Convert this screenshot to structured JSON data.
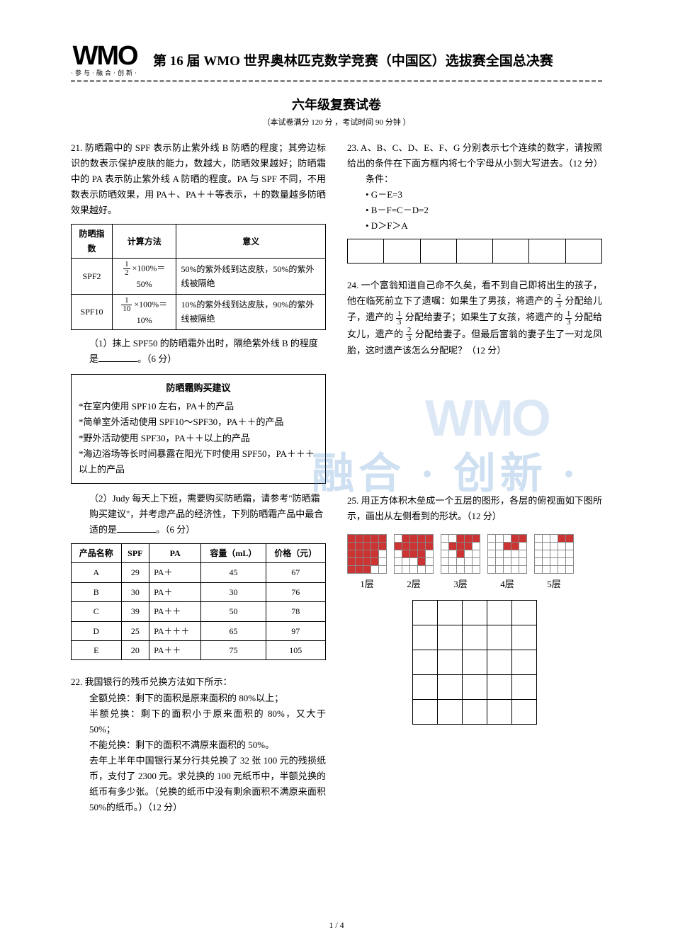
{
  "logo": {
    "main": "WMO",
    "sub": "·参与·融合·创新·"
  },
  "header_title": "第 16 届 WMO 世界奥林匹克数学竞赛（中国区）选拔赛全国总决赛",
  "subtitle": "六年级复赛试卷",
  "subinfo": "（本试卷满分 120 分 ，考试时间 90 分钟 ）",
  "q21": {
    "intro": "21. 防晒霜中的 SPF 表示防止紫外线 B 防晒的程度；其旁边标识的数表示保护皮肤的能力，数越大，防晒效果越好；防晒霜中的 PA 表示防止紫外线 A 防晒的程度。PA 与 SPF 不同，不用数表示防晒效果，用 PA＋、PA＋＋等表示，＋的数量越多防晒效果越好。",
    "table1_header": [
      "防晒指数",
      "计算方法",
      "意义"
    ],
    "table1_rows": [
      {
        "idx": "SPF2",
        "calc_num": "1",
        "calc_den": "2",
        "calc_suffix": " ×100%＝50%",
        "meaning": "50%的紫外线到达皮肤，50%的紫外线被隔绝"
      },
      {
        "idx": "SPF10",
        "calc_num": "1",
        "calc_den": "10",
        "calc_suffix": " ×100%＝10%",
        "meaning": "10%的紫外线到达皮肤，90%的紫外线被隔绝"
      }
    ],
    "sub1": "（1）抹上 SPF50 的防晒霜外出时，隔绝紫外线 B 的程度是",
    "sub1_pts": "。（6 分）",
    "box_title": "防晒霜购买建议",
    "box_lines": [
      "*在室内使用 SPF10 左右，PA＋的产品",
      "*简单室外活动使用 SPF10～SPF30，PA＋＋的产品",
      "*野外活动使用 SPF30，PA＋＋以上的产品",
      "*海边浴场等长时间暴露在阳光下时使用 SPF50，PA＋＋＋以上的产品"
    ],
    "sub2": "（2）Judy 每天上下班，需要购买防晒霜，请参考\"防晒霜购买建议\"，并考虑产品的经济性，下列防晒霜产品中最合适的是",
    "sub2_pts": "。（6 分）",
    "table2_header": [
      "产品名称",
      "SPF",
      "PA",
      "容量（mL）",
      "价格（元）"
    ],
    "table2_rows": [
      [
        "A",
        "29",
        "PA＋",
        "45",
        "67"
      ],
      [
        "B",
        "30",
        "PA＋",
        "30",
        "76"
      ],
      [
        "C",
        "39",
        "PA＋＋",
        "50",
        "78"
      ],
      [
        "D",
        "25",
        "PA＋＋＋",
        "65",
        "97"
      ],
      [
        "E",
        "20",
        "PA＋＋",
        "75",
        "105"
      ]
    ]
  },
  "q22": {
    "text": "22. 我国银行的残币兑换方法如下所示：",
    "lines": [
      "全额兑换：剩下的面积是原来面积的 80%以上；",
      "半额兑换：剩下的面积小于原来面积的 80%，又大于 50%；",
      "不能兑换：剩下的面积不满原来面积的 50%。",
      "去年上半年中国银行某分行共兑换了 32 张 100 元的残损纸币，支付了 2300 元。求兑换的 100 元纸币中，半额兑换的纸币有多少张。（兑换的纸币中没有剩余面积不满原来面积 50%的纸币。）（12 分）"
    ]
  },
  "q23": {
    "intro": "23. A、B、C、D、E、F、G 分别表示七个连续的数字，请按照给出的条件在下面方框内将七个字母从小到大写进去。（12 分）",
    "cond_label": "条件：",
    "conds": [
      "• G－E=3",
      "• B－F=C－D=2",
      "• D＞F＞A"
    ],
    "slots": 7
  },
  "q24": {
    "p1a": "24. 一个富翁知道自己命不久矣，看不到自己即将出生的孩子，他在临死前立下了遗嘱：如果生了男孩，将遗产的",
    "f1": {
      "n": "2",
      "d": "3"
    },
    "p1b": "分配给儿子，遗产的",
    "f2": {
      "n": "1",
      "d": "3"
    },
    "p1c": "分配给妻子；如果生了女孩，将遗产的",
    "f3": {
      "n": "1",
      "d": "3"
    },
    "p1d": "分配给女儿，遗产的",
    "f4": {
      "n": "2",
      "d": "3"
    },
    "p1e": "分配给妻子。但最后富翁的妻子生了一对龙凤胎，这时遗产该怎么分配呢？（12 分）"
  },
  "q25": {
    "text": "25. 用正方体积木垒成一个五层的图形，各层的俯视面如下图所示，画出从左侧看到的形状。（12 分）",
    "layer_labels": [
      "1层",
      "2层",
      "3层",
      "4层",
      "5层"
    ],
    "layers": [
      [
        [
          1,
          1,
          1,
          1,
          1
        ],
        [
          1,
          1,
          1,
          1,
          1
        ],
        [
          1,
          1,
          1,
          1,
          0
        ],
        [
          1,
          1,
          1,
          1,
          0
        ],
        [
          1,
          1,
          1,
          0,
          0
        ]
      ],
      [
        [
          0,
          1,
          1,
          1,
          1
        ],
        [
          1,
          1,
          1,
          1,
          1
        ],
        [
          0,
          1,
          1,
          1,
          0
        ],
        [
          0,
          0,
          0,
          1,
          0
        ],
        [
          0,
          0,
          0,
          0,
          0
        ]
      ],
      [
        [
          0,
          0,
          1,
          1,
          1
        ],
        [
          0,
          1,
          1,
          1,
          0
        ],
        [
          0,
          0,
          1,
          0,
          0
        ],
        [
          0,
          0,
          0,
          0,
          0
        ],
        [
          0,
          0,
          0,
          0,
          0
        ]
      ],
      [
        [
          0,
          0,
          0,
          1,
          1
        ],
        [
          0,
          0,
          1,
          1,
          0
        ],
        [
          0,
          0,
          0,
          0,
          0
        ],
        [
          0,
          0,
          0,
          0,
          0
        ],
        [
          0,
          0,
          0,
          0,
          0
        ]
      ],
      [
        [
          0,
          0,
          0,
          1,
          1
        ],
        [
          0,
          0,
          0,
          0,
          0
        ],
        [
          0,
          0,
          0,
          0,
          0
        ],
        [
          0,
          0,
          0,
          0,
          0
        ],
        [
          0,
          0,
          0,
          0,
          0
        ]
      ]
    ],
    "answer_grid": {
      "rows": 5,
      "cols": 5
    }
  },
  "watermark": "融合 · 创新 ·",
  "watermark2": "WMO",
  "page_num": "1 / 4"
}
